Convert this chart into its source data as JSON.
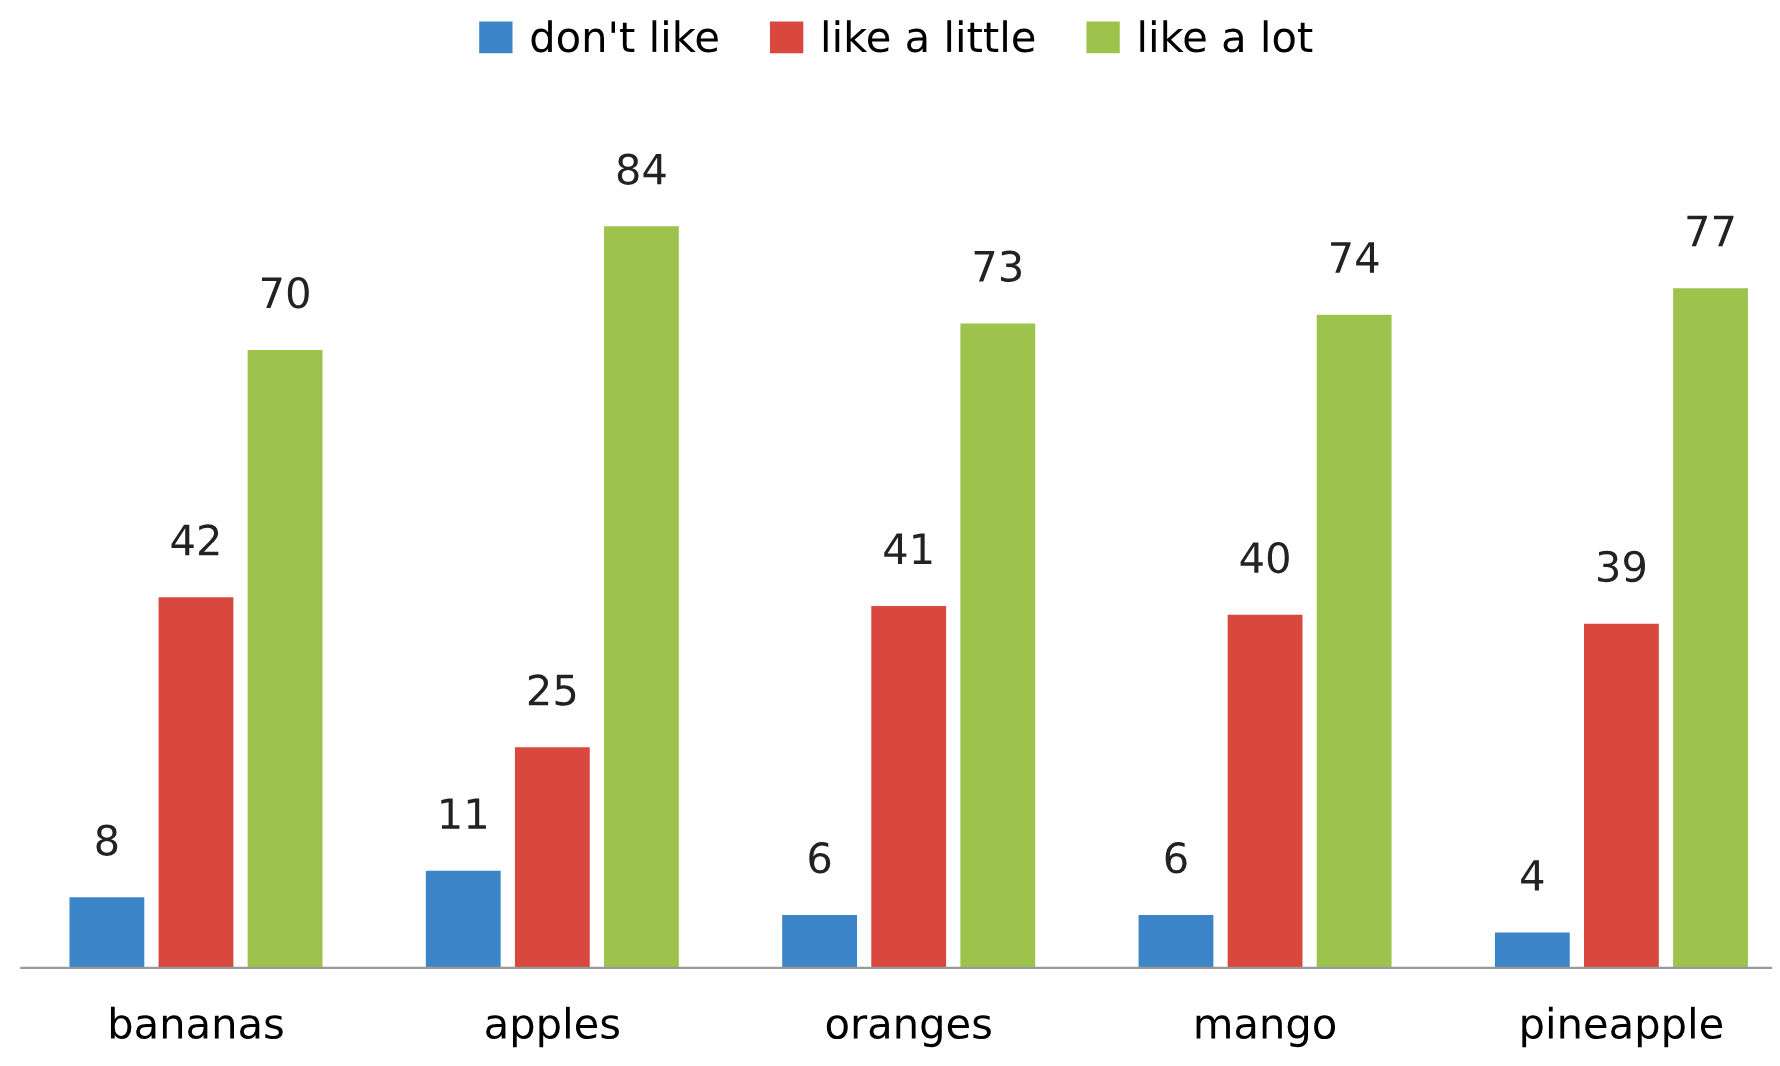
{
  "chart_data": {
    "type": "bar",
    "categories": [
      "bananas",
      "apples",
      "oranges",
      "mango",
      "pineapple"
    ],
    "series": [
      {
        "name": "don't like",
        "color": "#3d85c9",
        "values": [
          8,
          11,
          6,
          6,
          4
        ]
      },
      {
        "name": "like a little",
        "color": "#d8483f",
        "values": [
          42,
          25,
          41,
          40,
          39
        ]
      },
      {
        "name": "like a lot",
        "color": "#9dc34d",
        "values": [
          70,
          84,
          73,
          74,
          77
        ]
      }
    ],
    "data_labels": true,
    "legend": "top",
    "grid": false
  }
}
